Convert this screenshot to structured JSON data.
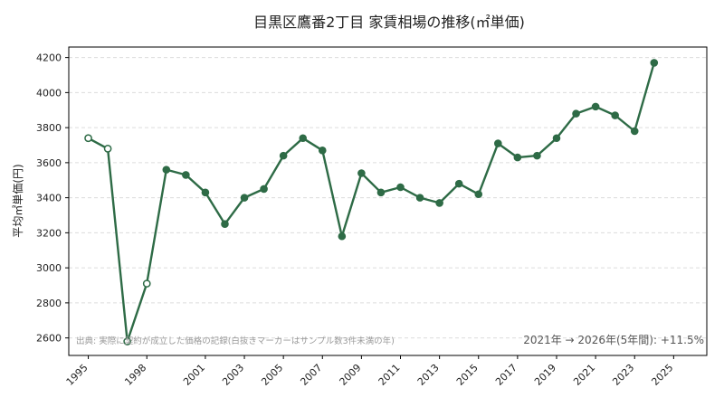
{
  "chart_data": {
    "type": "line",
    "title": "目黒区鷹番2丁目 家賃相場の推移(㎡単価)",
    "xlabel": "",
    "ylabel": "平均㎡単価(円)",
    "x_tick_labels": [
      "1995",
      "1998",
      "2001",
      "2003",
      "2005",
      "2007",
      "2009",
      "2011",
      "2013",
      "2015",
      "2017",
      "2019",
      "2021",
      "2023",
      "2025"
    ],
    "y_ticks": [
      2600,
      2800,
      3000,
      3200,
      3400,
      3600,
      3800,
      4000,
      4200
    ],
    "ylim": [
      2500,
      4260
    ],
    "xlim": [
      1994.0,
      2026.7
    ],
    "grid": true,
    "color": "#2e6b46",
    "series": [
      {
        "x": [
          1995,
          1996,
          1997,
          1998,
          1999,
          2000,
          2001,
          2002,
          2003,
          2004,
          2005,
          2006,
          2007,
          2008,
          2009,
          2010,
          2011,
          2012,
          2013,
          2014,
          2015,
          2016,
          2017,
          2018,
          2019,
          2020,
          2021,
          2022,
          2023,
          2024,
          2025
        ],
        "values": [
          3740,
          3680,
          2580,
          2910,
          3560,
          3530,
          3430,
          3250,
          3400,
          3450,
          3640,
          3740,
          3670,
          3180,
          3540,
          3430,
          3460,
          3400,
          3370,
          3480,
          3420,
          3710,
          3630,
          3640,
          3740,
          3880,
          3920,
          3870,
          3780,
          4170,
          null
        ],
        "hollow": [
          true,
          true,
          true,
          true,
          false,
          false,
          false,
          false,
          false,
          false,
          false,
          false,
          false,
          false,
          false,
          false,
          false,
          false,
          false,
          false,
          false,
          false,
          false,
          false,
          false,
          false,
          false,
          false,
          false,
          false,
          false
        ]
      }
    ],
    "source_note": "出典: 実際に契約が成立した価格の記録(白抜きマーカーはサンプル数3件未満の年)",
    "annotation": "2021年 → 2026年(5年間): +11.5%"
  }
}
